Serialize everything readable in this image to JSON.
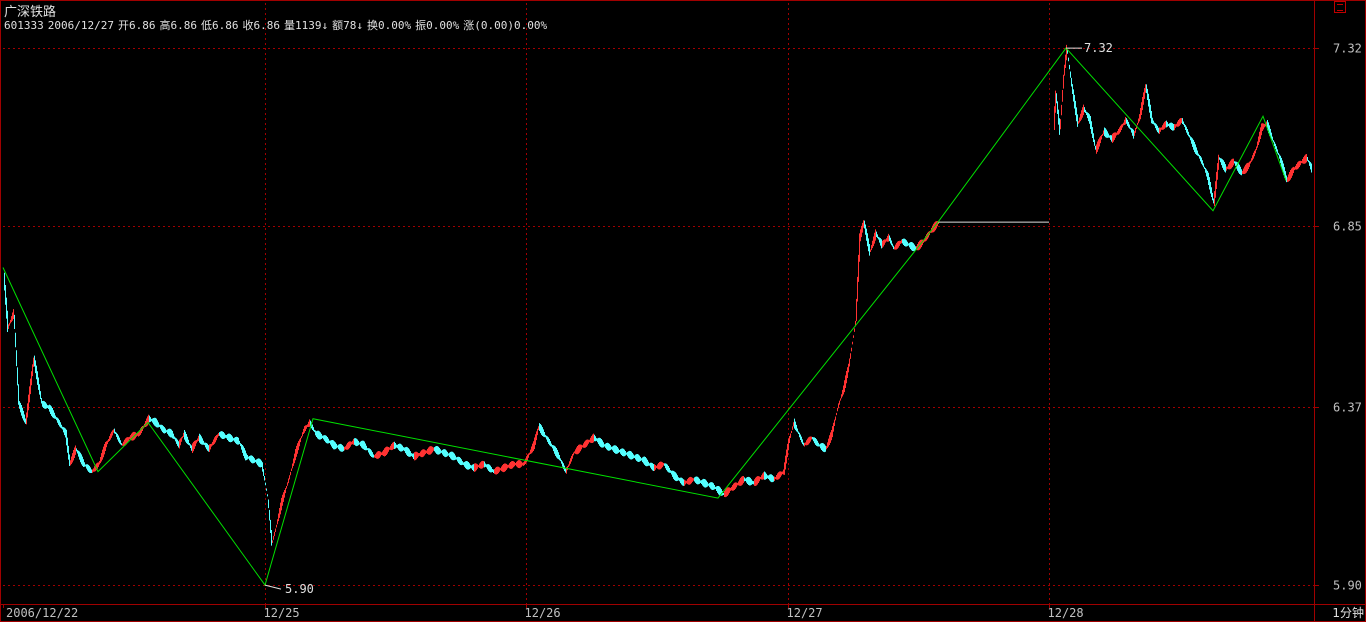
{
  "stock": {
    "name": "广深铁路",
    "info": [
      "601333",
      "2006/12/27",
      "开6.86",
      "高6.86",
      "低6.86",
      "收6.86",
      "量1139↓",
      "额78↓",
      "换0.00%",
      "振0.00%",
      "涨(0.00)0.00%"
    ]
  },
  "period_label": "1分钟",
  "colors": {
    "up": "#ff3232",
    "down": "#54ffff",
    "zigzag": "#00e000",
    "grid": "#a00000",
    "text": "#e0e0e0",
    "axis_text": "#c0c0c0"
  },
  "chart_data": {
    "type": "line",
    "title": "",
    "ylim": [
      5.85,
      7.36
    ],
    "y_ticks": [
      7.32,
      6.85,
      6.37,
      5.9
    ],
    "x_ticks": [
      "2006/12/22",
      "12/25",
      "12/26",
      "12/27",
      "12/28"
    ],
    "grid": true,
    "extreme_labels": [
      {
        "value": "7.32",
        "kind": "high"
      },
      {
        "value": "5.90",
        "kind": "low"
      }
    ],
    "zigzag": {
      "name": "",
      "points": [
        [
          0,
          6.74
        ],
        [
          95,
          6.2
        ],
        [
          145,
          6.33
        ],
        [
          262,
          5.9
        ],
        [
          310,
          6.34
        ],
        [
          715,
          6.13
        ],
        [
          935,
          6.86
        ],
        [
          1063,
          7.32
        ],
        [
          1210,
          6.89
        ],
        [
          1260,
          7.14
        ],
        [
          1283,
          6.97
        ]
      ]
    },
    "flat_segment": {
      "from": 935,
      "to": 1046,
      "value": 6.86
    },
    "series_keypoints": [
      [
        0,
        6.72
      ],
      [
        4,
        6.58
      ],
      [
        10,
        6.62
      ],
      [
        15,
        6.38
      ],
      [
        22,
        6.33
      ],
      [
        30,
        6.5
      ],
      [
        38,
        6.38
      ],
      [
        45,
        6.37
      ],
      [
        55,
        6.33
      ],
      [
        62,
        6.3
      ],
      [
        66,
        6.22
      ],
      [
        72,
        6.26
      ],
      [
        80,
        6.22
      ],
      [
        88,
        6.2
      ],
      [
        95,
        6.22
      ],
      [
        102,
        6.27
      ],
      [
        110,
        6.31
      ],
      [
        118,
        6.27
      ],
      [
        126,
        6.29
      ],
      [
        135,
        6.3
      ],
      [
        145,
        6.34
      ],
      [
        152,
        6.33
      ],
      [
        160,
        6.31
      ],
      [
        168,
        6.3
      ],
      [
        175,
        6.27
      ],
      [
        180,
        6.3
      ],
      [
        188,
        6.26
      ],
      [
        195,
        6.29
      ],
      [
        205,
        6.26
      ],
      [
        215,
        6.3
      ],
      [
        225,
        6.29
      ],
      [
        235,
        6.28
      ],
      [
        242,
        6.24
      ],
      [
        250,
        6.23
      ],
      [
        258,
        6.22
      ],
      [
        264,
        6.13
      ],
      [
        268,
        6.01
      ],
      [
        272,
        6.05
      ],
      [
        278,
        6.12
      ],
      [
        285,
        6.18
      ],
      [
        292,
        6.25
      ],
      [
        300,
        6.31
      ],
      [
        306,
        6.33
      ],
      [
        312,
        6.3
      ],
      [
        320,
        6.29
      ],
      [
        330,
        6.27
      ],
      [
        340,
        6.26
      ],
      [
        350,
        6.28
      ],
      [
        360,
        6.27
      ],
      [
        370,
        6.24
      ],
      [
        380,
        6.25
      ],
      [
        390,
        6.27
      ],
      [
        400,
        6.26
      ],
      [
        410,
        6.24
      ],
      [
        420,
        6.25
      ],
      [
        430,
        6.26
      ],
      [
        440,
        6.25
      ],
      [
        450,
        6.24
      ],
      [
        460,
        6.22
      ],
      [
        470,
        6.21
      ],
      [
        480,
        6.22
      ],
      [
        490,
        6.2
      ],
      [
        500,
        6.21
      ],
      [
        510,
        6.22
      ],
      [
        520,
        6.22
      ],
      [
        530,
        6.27
      ],
      [
        535,
        6.32
      ],
      [
        545,
        6.28
      ],
      [
        555,
        6.24
      ],
      [
        562,
        6.2
      ],
      [
        570,
        6.25
      ],
      [
        580,
        6.27
      ],
      [
        590,
        6.29
      ],
      [
        600,
        6.27
      ],
      [
        610,
        6.26
      ],
      [
        620,
        6.25
      ],
      [
        630,
        6.24
      ],
      [
        640,
        6.23
      ],
      [
        650,
        6.21
      ],
      [
        660,
        6.22
      ],
      [
        670,
        6.19
      ],
      [
        680,
        6.17
      ],
      [
        690,
        6.18
      ],
      [
        700,
        6.17
      ],
      [
        710,
        6.16
      ],
      [
        720,
        6.14
      ],
      [
        730,
        6.16
      ],
      [
        740,
        6.18
      ],
      [
        750,
        6.17
      ],
      [
        760,
        6.19
      ],
      [
        770,
        6.18
      ],
      [
        780,
        6.2
      ],
      [
        785,
        6.28
      ],
      [
        790,
        6.33
      ],
      [
        795,
        6.3
      ],
      [
        800,
        6.27
      ],
      [
        808,
        6.29
      ],
      [
        815,
        6.27
      ],
      [
        822,
        6.26
      ],
      [
        828,
        6.3
      ],
      [
        834,
        6.37
      ],
      [
        840,
        6.42
      ],
      [
        845,
        6.48
      ],
      [
        852,
        6.6
      ],
      [
        856,
        6.82
      ],
      [
        860,
        6.86
      ],
      [
        866,
        6.78
      ],
      [
        872,
        6.83
      ],
      [
        878,
        6.8
      ],
      [
        885,
        6.82
      ],
      [
        890,
        6.79
      ],
      [
        898,
        6.81
      ],
      [
        905,
        6.8
      ],
      [
        912,
        6.79
      ],
      [
        920,
        6.81
      ],
      [
        928,
        6.84
      ],
      [
        935,
        6.86
      ],
      [
        1049,
        7.07
      ],
      [
        1052,
        7.2
      ],
      [
        1056,
        7.1
      ],
      [
        1060,
        7.25
      ],
      [
        1063,
        7.32
      ],
      [
        1068,
        7.22
      ],
      [
        1074,
        7.12
      ],
      [
        1080,
        7.16
      ],
      [
        1086,
        7.13
      ],
      [
        1092,
        7.05
      ],
      [
        1100,
        7.1
      ],
      [
        1108,
        7.08
      ],
      [
        1115,
        7.1
      ],
      [
        1122,
        7.13
      ],
      [
        1130,
        7.09
      ],
      [
        1136,
        7.14
      ],
      [
        1142,
        7.22
      ],
      [
        1148,
        7.13
      ],
      [
        1155,
        7.1
      ],
      [
        1162,
        7.12
      ],
      [
        1170,
        7.11
      ],
      [
        1178,
        7.13
      ],
      [
        1185,
        7.09
      ],
      [
        1192,
        7.05
      ],
      [
        1198,
        7.02
      ],
      [
        1204,
        6.98
      ],
      [
        1210,
        6.91
      ],
      [
        1215,
        7.03
      ],
      [
        1222,
        7.0
      ],
      [
        1230,
        7.02
      ],
      [
        1238,
        6.99
      ],
      [
        1245,
        7.01
      ],
      [
        1252,
        7.05
      ],
      [
        1258,
        7.11
      ],
      [
        1263,
        7.12
      ],
      [
        1270,
        7.07
      ],
      [
        1276,
        7.03
      ],
      [
        1283,
        6.97
      ],
      [
        1290,
        7.0
      ],
      [
        1298,
        7.02
      ],
      [
        1303,
        7.03
      ],
      [
        1308,
        7.0
      ]
    ]
  }
}
